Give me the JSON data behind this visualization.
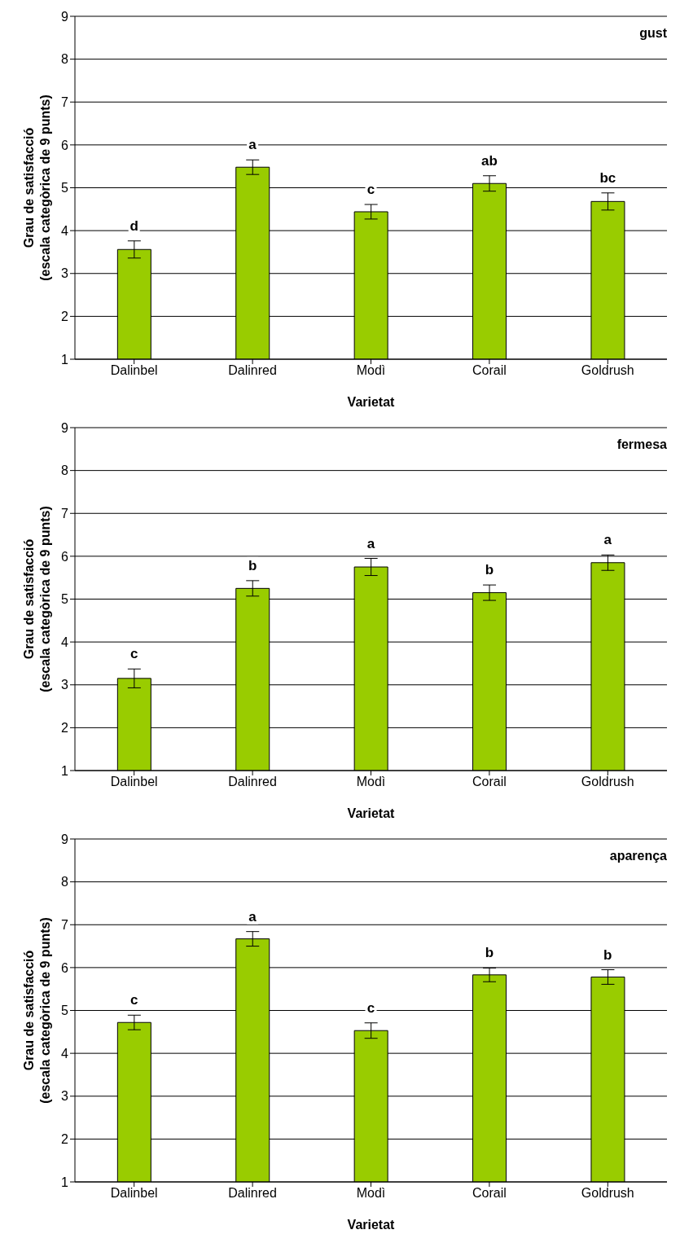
{
  "chart_data": [
    {
      "type": "bar",
      "title": "gust",
      "xlabel": "Varietat",
      "ylabel": "Grau de satisfacció\n(escala categòrica de 9 punts)",
      "categories": [
        "Dalinbel",
        "Dalinred",
        "Modì",
        "Corail",
        "Goldrush"
      ],
      "values": [
        3.56,
        5.48,
        4.44,
        5.1,
        4.68
      ],
      "errors": [
        0.2,
        0.17,
        0.17,
        0.18,
        0.2
      ],
      "color": "#99cc00",
      "ylim": [
        1,
        9
      ],
      "yticks": [
        1,
        2,
        3,
        4,
        5,
        6,
        7,
        8,
        9
      ],
      "grid": "y",
      "annotations": [
        {
          "text": "d",
          "x": "Dalinbel",
          "y": 3.76
        },
        {
          "text": "a",
          "x": "Dalinred",
          "y": 5.65
        },
        {
          "text": "c",
          "x": "Modì",
          "y": 4.61
        },
        {
          "text": "ab",
          "x": "Corail",
          "y": 5.28
        },
        {
          "text": "bc",
          "x": "Goldrush",
          "y": 4.88
        }
      ]
    },
    {
      "type": "bar",
      "title": "fermesa",
      "xlabel": "Varietat",
      "ylabel": "Grau de satisfacció\n(escala categòrica de 9 punts)",
      "categories": [
        "Dalinbel",
        "Dalinred",
        "Modì",
        "Corail",
        "Goldrush"
      ],
      "values": [
        3.15,
        5.25,
        5.75,
        5.15,
        5.85
      ],
      "errors": [
        0.22,
        0.18,
        0.2,
        0.18,
        0.18
      ],
      "color": "#99cc00",
      "ylim": [
        1,
        9
      ],
      "yticks": [
        1,
        2,
        3,
        4,
        5,
        6,
        7,
        8,
        9
      ],
      "grid": "y",
      "annotations": [
        {
          "text": "c",
          "x": "Dalinbel",
          "y": 3.37
        },
        {
          "text": "b",
          "x": "Dalinred",
          "y": 5.43
        },
        {
          "text": "a",
          "x": "Modì",
          "y": 5.95
        },
        {
          "text": "b",
          "x": "Corail",
          "y": 5.33
        },
        {
          "text": "a",
          "x": "Goldrush",
          "y": 6.03
        }
      ]
    },
    {
      "type": "bar",
      "title": "aparença",
      "xlabel": "Varietat",
      "ylabel": "Grau de satisfacció\n(escala categòrica de 9 punts)",
      "categories": [
        "Dalinbel",
        "Dalinred",
        "Modì",
        "Corail",
        "Goldrush"
      ],
      "values": [
        4.72,
        6.67,
        4.53,
        5.83,
        5.78
      ],
      "errors": [
        0.17,
        0.17,
        0.18,
        0.16,
        0.17
      ],
      "color": "#99cc00",
      "ylim": [
        1,
        9
      ],
      "yticks": [
        1,
        2,
        3,
        4,
        5,
        6,
        7,
        8,
        9
      ],
      "grid": "y",
      "annotations": [
        {
          "text": "c",
          "x": "Dalinbel",
          "y": 4.89
        },
        {
          "text": "a",
          "x": "Dalinred",
          "y": 6.84
        },
        {
          "text": "c",
          "x": "Modì",
          "y": 4.71
        },
        {
          "text": "b",
          "x": "Corail",
          "y": 5.99
        },
        {
          "text": "b",
          "x": "Goldrush",
          "y": 5.95
        }
      ]
    }
  ]
}
